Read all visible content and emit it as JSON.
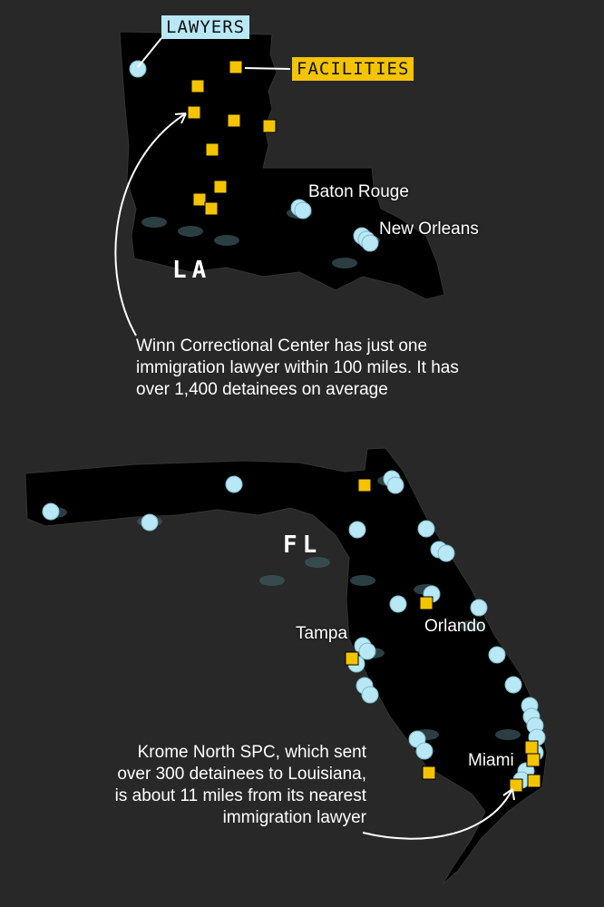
{
  "legend": {
    "lawyers": "LAWYERS",
    "facilities": "FACILITIES"
  },
  "colors": {
    "background": "#282828",
    "land": "#000000",
    "urban": "#3d5a5e",
    "lawyers": "#b8e8f5",
    "facilities": "#f5c400"
  },
  "louisiana": {
    "label": "LA",
    "cities": [
      "Baton Rouge",
      "New Orleans"
    ],
    "annotation": "Winn Correctional Center has just one immigration lawyer within 100 miles. It has over 1,400 detainees on average"
  },
  "florida": {
    "label": "FL",
    "cities": [
      "Tampa",
      "Orlando",
      "Miami"
    ],
    "annotation": "Krome North SPC, which sent over 300 detainees to Louisiana, is about 11 miles from its nearest immigration lawyer"
  }
}
